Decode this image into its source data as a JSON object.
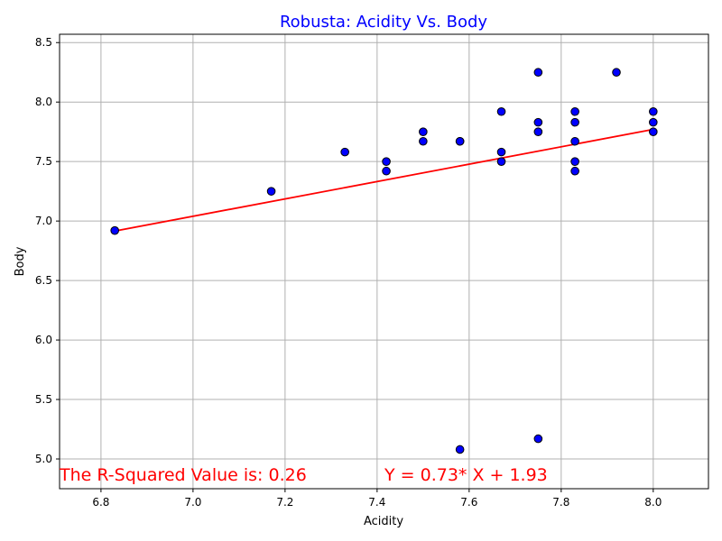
{
  "chart_data": {
    "type": "scatter",
    "title": "Robusta: Acidity Vs. Body",
    "xlabel": "Acidity",
    "ylabel": "Body",
    "xlim": [
      6.71,
      8.12
    ],
    "ylim": [
      4.75,
      8.57
    ],
    "xticks": [
      "6.8",
      "7.0",
      "7.2",
      "7.4",
      "7.6",
      "7.8",
      "8.0"
    ],
    "yticks": [
      "5.0",
      "5.5",
      "6.0",
      "6.5",
      "7.0",
      "7.5",
      "8.0",
      "8.5"
    ],
    "grid": true,
    "points": [
      [
        6.83,
        6.92
      ],
      [
        7.17,
        7.25
      ],
      [
        7.33,
        7.58
      ],
      [
        7.42,
        7.5
      ],
      [
        7.42,
        7.42
      ],
      [
        7.5,
        7.75
      ],
      [
        7.5,
        7.67
      ],
      [
        7.58,
        7.67
      ],
      [
        7.58,
        7.67
      ],
      [
        7.58,
        5.08
      ],
      [
        7.67,
        7.92
      ],
      [
        7.67,
        7.58
      ],
      [
        7.67,
        7.5
      ],
      [
        7.75,
        8.25
      ],
      [
        7.75,
        7.83
      ],
      [
        7.75,
        7.75
      ],
      [
        7.75,
        5.17
      ],
      [
        7.83,
        7.92
      ],
      [
        7.83,
        7.83
      ],
      [
        7.83,
        7.67
      ],
      [
        7.83,
        7.5
      ],
      [
        7.83,
        7.42
      ],
      [
        7.92,
        8.25
      ],
      [
        8.0,
        7.92
      ],
      [
        8.0,
        7.83
      ],
      [
        8.0,
        7.75
      ]
    ],
    "regression": {
      "slope": 0.73,
      "intercept": 1.93,
      "x_range": [
        6.83,
        8.0
      ]
    },
    "annotations": {
      "r_squared": "The R-Squared Value is: 0.26",
      "equation": "Y = 0.73* X + 1.93"
    },
    "colors": {
      "title": "#0000ff",
      "point_fill": "#0000ff",
      "point_edge": "#000000",
      "line": "#ff0000",
      "annotation": "#ff0000",
      "grid": "#b0b0b0"
    }
  }
}
